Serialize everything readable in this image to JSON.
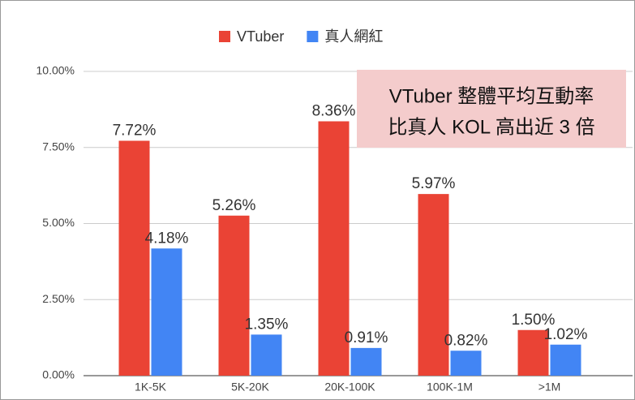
{
  "chart_data": {
    "type": "bar",
    "categories": [
      "1K-5K",
      "5K-20K",
      "20K-100K",
      "100K-1M",
      ">1M"
    ],
    "series": [
      {
        "name": "VTuber",
        "color": "#ea4335",
        "values": [
          7.72,
          5.26,
          8.36,
          5.97,
          1.5
        ],
        "value_labels": [
          "7.72%",
          "5.26%",
          "8.36%",
          "5.97%",
          "1.50%"
        ]
      },
      {
        "name": "真人網紅",
        "color": "#4285f4",
        "values": [
          4.18,
          1.35,
          0.91,
          0.82,
          1.02
        ],
        "value_labels": [
          "4.18%",
          "1.35%",
          "0.91%",
          "0.82%",
          "1.02%"
        ]
      }
    ],
    "ylim": [
      0,
      10
    ],
    "yticks": [
      {
        "value": 0,
        "label": "0.00%"
      },
      {
        "value": 2.5,
        "label": "2.50%"
      },
      {
        "value": 5,
        "label": "5.00%"
      },
      {
        "value": 7.5,
        "label": "7.50%"
      },
      {
        "value": 10,
        "label": "10.00%"
      }
    ],
    "grid": true,
    "legend": "top",
    "annotation": [
      "VTuber 整體平均互動率",
      "比真人 KOL 高出近 3 倍"
    ]
  }
}
